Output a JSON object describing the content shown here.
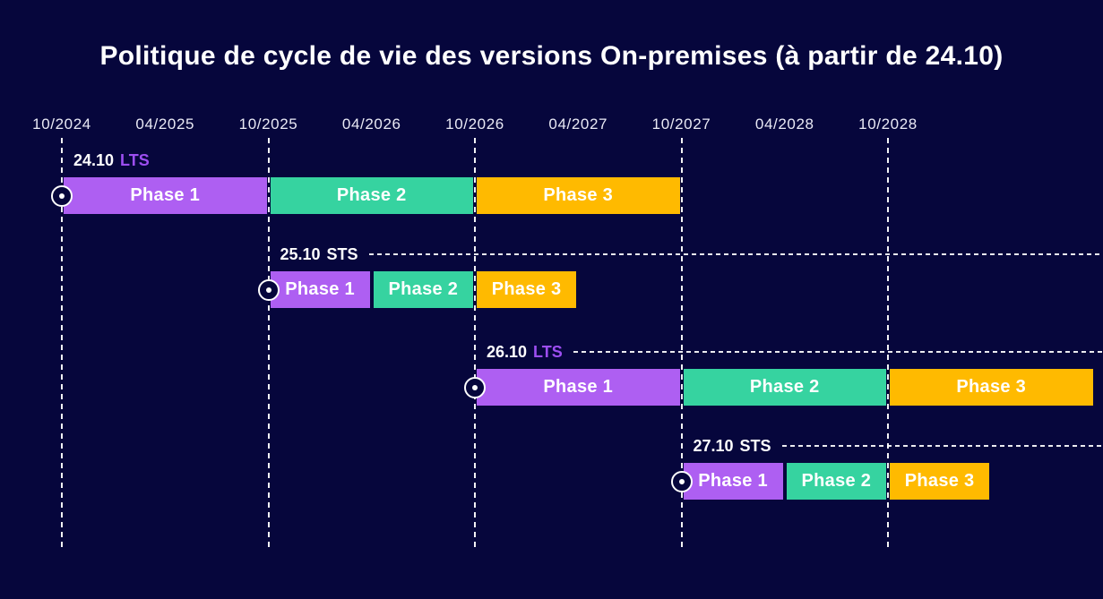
{
  "title": "Politique de cycle de vie des versions On-premises (à partir de 24.10)",
  "colors": {
    "background": "#06063c",
    "title_text": "#ffffff",
    "axis_text": "#e9e9f5",
    "grid_line": "#ffffff",
    "bar_text": "#ffffff",
    "phase1": "#ae5ff2",
    "phase2": "#36d3a0",
    "phase3": "#ffba00",
    "channel_lts_text": "#9d4ef2",
    "channel_sts_text": "#ffffff"
  },
  "chart_data": {
    "type": "bar",
    "subtype": "gantt-timeline",
    "title": "Politique de cycle de vie des versions On-premises (à partir de 24.10)",
    "x_axis": {
      "ticks": [
        "10/2024",
        "04/2025",
        "10/2025",
        "04/2026",
        "10/2026",
        "04/2027",
        "10/2027",
        "04/2028",
        "10/2028"
      ],
      "gridlines": [
        "10/2024",
        "10/2025",
        "10/2026",
        "10/2027",
        "10/2028"
      ],
      "range_start": "10/2024",
      "tick_interval_months": 6,
      "grid": true
    },
    "legend": "none",
    "rows": [
      {
        "version": "24.10",
        "channel": "LTS",
        "dotted_guide": false,
        "phases": [
          {
            "label": "Phase 1",
            "start": "10/2024",
            "end": "10/2025",
            "color_key": "phase1"
          },
          {
            "label": "Phase 2",
            "start": "10/2025",
            "end": "10/2026",
            "color_key": "phase2"
          },
          {
            "label": "Phase 3",
            "start": "10/2026",
            "end": "10/2027",
            "color_key": "phase3"
          }
        ]
      },
      {
        "version": "25.10",
        "channel": "STS",
        "dotted_guide": true,
        "phases": [
          {
            "label": "Phase 1",
            "start": "10/2025",
            "end": "04/2026",
            "color_key": "phase1"
          },
          {
            "label": "Phase 2",
            "start": "04/2026",
            "end": "10/2026",
            "color_key": "phase2"
          },
          {
            "label": "Phase 3",
            "start": "10/2026",
            "end": "04/2027",
            "color_key": "phase3"
          }
        ]
      },
      {
        "version": "26.10",
        "channel": "LTS",
        "dotted_guide": true,
        "phases": [
          {
            "label": "Phase 1",
            "start": "10/2026",
            "end": "10/2027",
            "color_key": "phase1"
          },
          {
            "label": "Phase 2",
            "start": "10/2027",
            "end": "10/2028",
            "color_key": "phase2"
          },
          {
            "label": "Phase 3",
            "start": "10/2028",
            "end": "10/2029",
            "color_key": "phase3"
          }
        ]
      },
      {
        "version": "27.10",
        "channel": "STS",
        "dotted_guide": true,
        "phases": [
          {
            "label": "Phase 1",
            "start": "10/2027",
            "end": "04/2028",
            "color_key": "phase1"
          },
          {
            "label": "Phase 2",
            "start": "04/2028",
            "end": "10/2028",
            "color_key": "phase2"
          },
          {
            "label": "Phase 3",
            "start": "10/2028",
            "end": "04/2029",
            "color_key": "phase3"
          }
        ]
      }
    ]
  }
}
